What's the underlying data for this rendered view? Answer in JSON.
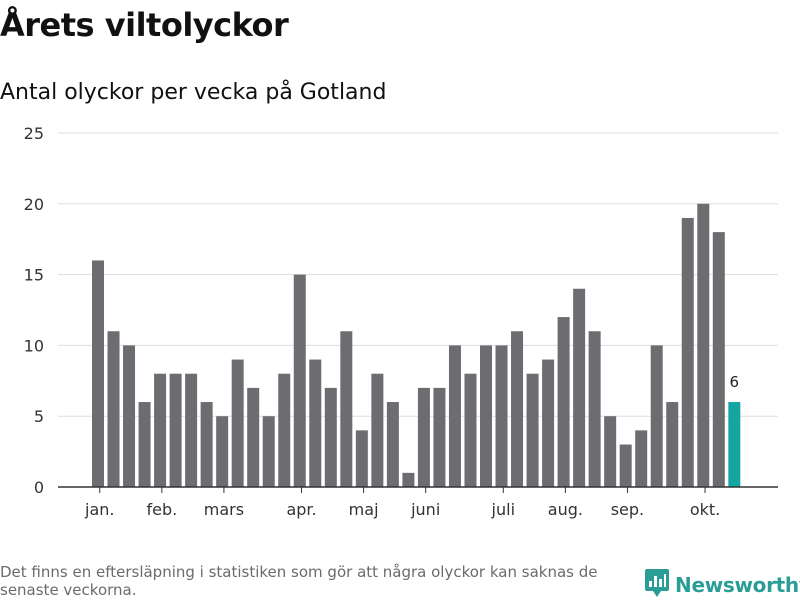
{
  "header": {
    "title": "Årets viltolyckor",
    "subtitle": "Antal olyckor per vecka på Gotland"
  },
  "chart_data": {
    "type": "bar",
    "values": [
      16,
      11,
      10,
      6,
      8,
      8,
      8,
      6,
      5,
      9,
      7,
      5,
      8,
      15,
      9,
      7,
      11,
      4,
      8,
      6,
      1,
      7,
      7,
      10,
      8,
      10,
      10,
      11,
      8,
      9,
      12,
      14,
      11,
      5,
      3,
      4,
      10,
      6,
      19,
      20,
      18,
      6
    ],
    "highlight_index": 41,
    "highlight_label": "6",
    "ylim": [
      0,
      25
    ],
    "yticks": [
      0,
      5,
      10,
      15,
      20,
      25
    ],
    "month_labels": [
      {
        "label": "jan.",
        "week": 0.5
      },
      {
        "label": "feb.",
        "week": 4.5
      },
      {
        "label": "mars",
        "week": 8.5
      },
      {
        "label": "apr.",
        "week": 13.5
      },
      {
        "label": "maj",
        "week": 17.5
      },
      {
        "label": "juni",
        "week": 21.5
      },
      {
        "label": "juli",
        "week": 26.5
      },
      {
        "label": "aug.",
        "week": 30.5
      },
      {
        "label": "sep.",
        "week": 34.5
      },
      {
        "label": "okt.",
        "week": 39.5
      }
    ],
    "colors": {
      "bar": "#6d6d71",
      "highlight": "#13a6a0",
      "grid": "#dddddd",
      "axis": "#333333"
    },
    "grid": true
  },
  "footer": {
    "note": "Det finns en eftersläpning i statistiken som gör att några olyckor kan saknas de senaste veckorna.",
    "brand": "Newsworthy",
    "brand_color": "#2a9d97"
  }
}
